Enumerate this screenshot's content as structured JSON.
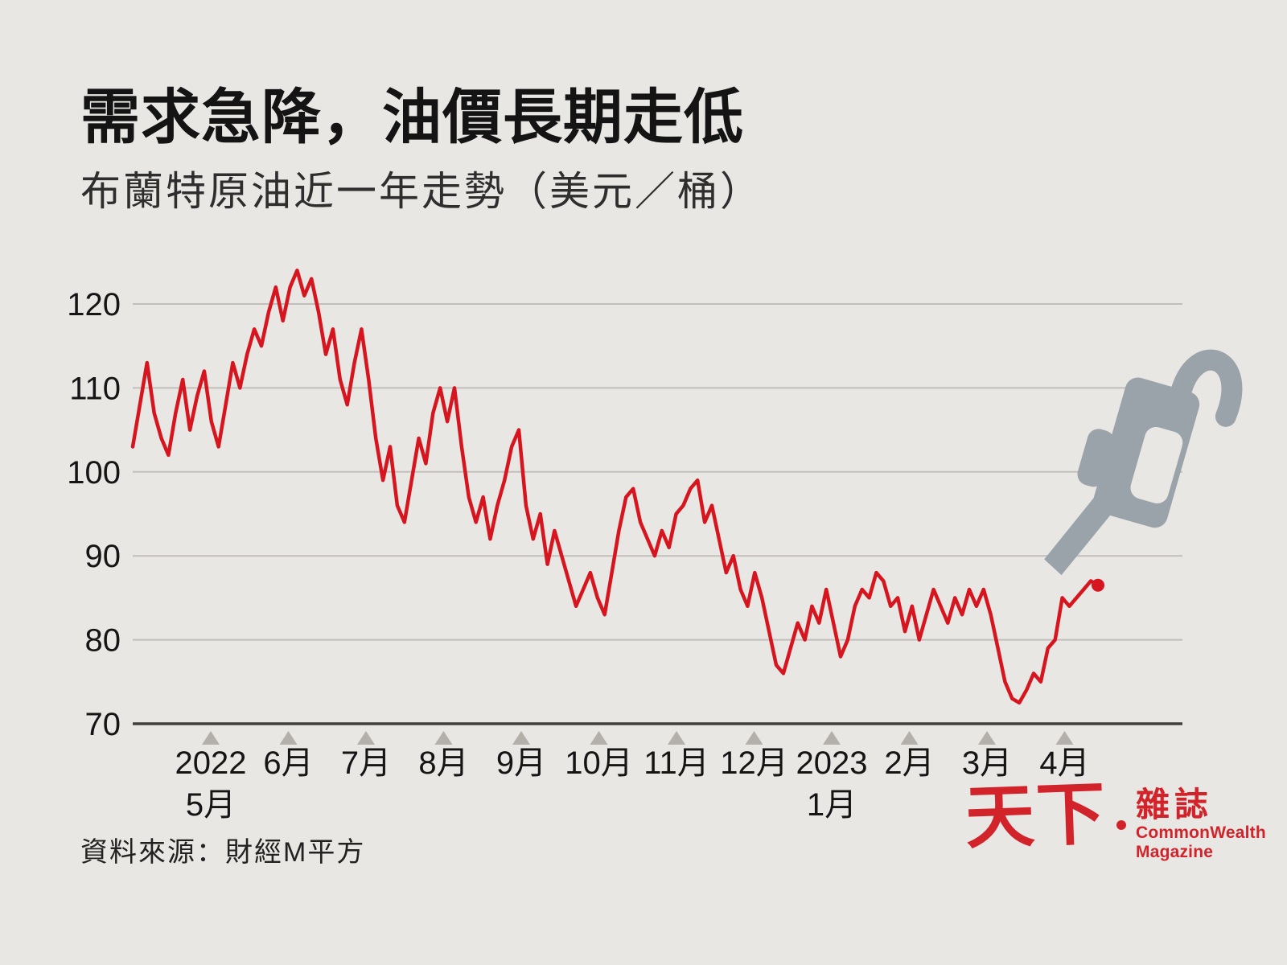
{
  "colors": {
    "background": "#e9e7e4",
    "line": "#d6151f",
    "grid": "#c2bfbb",
    "axis": "#3f3f3c",
    "tick_triangle": "#b3b0ac",
    "text": "#151515",
    "nozzle": "#9aa3a9",
    "logo_red": "#d2232a"
  },
  "chart_data": {
    "type": "line",
    "title": "需求急降，油價長期走低",
    "subtitle": "布蘭特原油近一年走勢（美元／桶）",
    "ylabel": "美元／桶",
    "ylim": [
      70,
      124
    ],
    "yticks": [
      70,
      80,
      90,
      100,
      110,
      120
    ],
    "grid": "horizontal",
    "legend": "none",
    "x_months": [
      {
        "line1": "2022",
        "line2": "5月"
      },
      {
        "line1": "6月"
      },
      {
        "line1": "7月"
      },
      {
        "line1": "8月"
      },
      {
        "line1": "9月"
      },
      {
        "line1": "10月"
      },
      {
        "line1": "11月"
      },
      {
        "line1": "12月"
      },
      {
        "line1": "2023",
        "line2": "1月"
      },
      {
        "line1": "2月"
      },
      {
        "line1": "3月"
      },
      {
        "line1": "4月"
      }
    ],
    "series": [
      {
        "name": "布蘭特原油",
        "color": "#d6151f",
        "values": [
          103,
          108,
          113,
          107,
          104,
          102,
          107,
          111,
          105,
          109,
          112,
          106,
          103,
          108,
          113,
          110,
          114,
          117,
          115,
          119,
          122,
          118,
          122,
          124,
          121,
          123,
          119,
          114,
          117,
          111,
          108,
          113,
          117,
          111,
          104,
          99,
          103,
          96,
          94,
          99,
          104,
          101,
          107,
          110,
          106,
          110,
          103,
          97,
          94,
          97,
          92,
          96,
          99,
          103,
          105,
          96,
          92,
          95,
          89,
          93,
          90,
          87,
          84,
          86,
          88,
          85,
          83,
          88,
          93,
          97,
          98,
          94,
          92,
          90,
          93,
          91,
          95,
          96,
          98,
          99,
          94,
          96,
          92,
          88,
          90,
          86,
          84,
          88,
          85,
          81,
          77,
          76,
          79,
          82,
          80,
          84,
          82,
          86,
          82,
          78,
          80,
          84,
          86,
          85,
          88,
          87,
          84,
          85,
          81,
          84,
          80,
          83,
          86,
          84,
          82,
          85,
          83,
          86,
          84,
          86,
          83,
          79,
          75,
          73,
          72.5,
          74,
          76,
          75,
          79,
          80,
          85,
          84,
          85,
          86,
          87,
          86.5
        ]
      }
    ]
  },
  "footer": {
    "source": "資料來源：財經M平方",
    "logo": {
      "brand_main": "天下",
      "brand_sub": "雜誌",
      "english1": "CommonWealth",
      "english2": "Magazine"
    }
  }
}
